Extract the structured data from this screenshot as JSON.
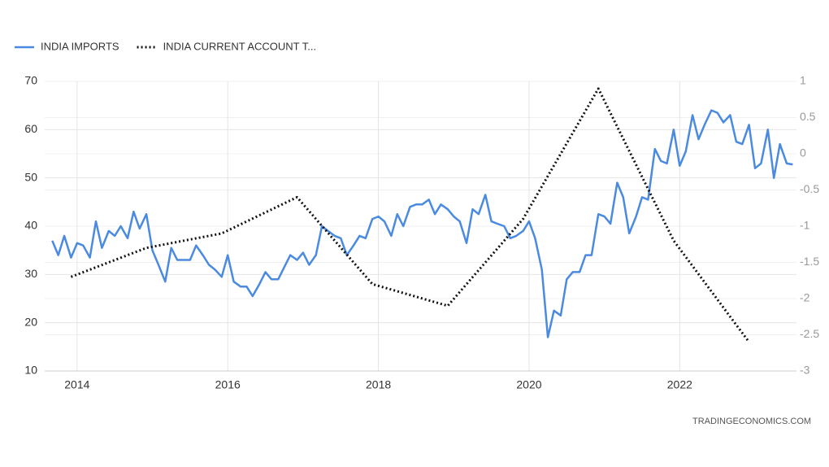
{
  "chart_data": {
    "type": "line",
    "series": [
      {
        "name": "INDIA IMPORTS",
        "color": "#4a8ae0",
        "axis": "y",
        "x": [
          2013.67,
          2013.75,
          2013.83,
          2013.92,
          2014.0,
          2014.08,
          2014.17,
          2014.25,
          2014.33,
          2014.42,
          2014.5,
          2014.58,
          2014.67,
          2014.75,
          2014.83,
          2014.92,
          2015.0,
          2015.08,
          2015.17,
          2015.25,
          2015.33,
          2015.42,
          2015.5,
          2015.58,
          2015.67,
          2015.75,
          2015.83,
          2015.92,
          2016.0,
          2016.08,
          2016.17,
          2016.25,
          2016.33,
          2016.42,
          2016.5,
          2016.58,
          2016.67,
          2016.75,
          2016.83,
          2016.92,
          2017.0,
          2017.08,
          2017.17,
          2017.25,
          2017.33,
          2017.42,
          2017.5,
          2017.58,
          2017.67,
          2017.75,
          2017.83,
          2017.92,
          2018.0,
          2018.08,
          2018.17,
          2018.25,
          2018.33,
          2018.42,
          2018.5,
          2018.58,
          2018.67,
          2018.75,
          2018.83,
          2018.92,
          2019.0,
          2019.08,
          2019.17,
          2019.25,
          2019.33,
          2019.42,
          2019.5,
          2019.58,
          2019.67,
          2019.75,
          2019.83,
          2019.92,
          2020.0,
          2020.08,
          2020.17,
          2020.25,
          2020.33,
          2020.42,
          2020.5,
          2020.58,
          2020.67,
          2020.75,
          2020.83,
          2020.92,
          2021.0,
          2021.08,
          2021.17,
          2021.25,
          2021.33,
          2021.42,
          2021.5,
          2021.58,
          2021.67,
          2021.75,
          2021.83,
          2021.92,
          2022.0,
          2022.08,
          2022.17,
          2022.25,
          2022.33,
          2022.42,
          2022.5,
          2022.58,
          2022.67,
          2022.75,
          2022.83,
          2022.92,
          2023.0,
          2023.08,
          2023.17,
          2023.25,
          2023.33,
          2023.42,
          2023.5
        ],
        "values": [
          37,
          34,
          38,
          33.5,
          36.5,
          36,
          33.5,
          41,
          35.5,
          39,
          38,
          40,
          37.5,
          43,
          39.5,
          42.5,
          35,
          32,
          28.5,
          35.5,
          33,
          33,
          33,
          36,
          34,
          32,
          31,
          29.5,
          34,
          28.5,
          27.5,
          27.5,
          25.5,
          28,
          30.5,
          29,
          29,
          31.5,
          34,
          33,
          34.5,
          32,
          34,
          40,
          39,
          38,
          37.5,
          34,
          36,
          38,
          37.5,
          41.5,
          42,
          41,
          38,
          42.5,
          40,
          44,
          44.5,
          44.5,
          45.5,
          42.5,
          44.5,
          43.5,
          42,
          41,
          36.5,
          43.5,
          42.5,
          46.5,
          41,
          40.5,
          40,
          37.5,
          38,
          39,
          41,
          37.5,
          31,
          17,
          22.5,
          21.5,
          29,
          30.5,
          30.5,
          34,
          34,
          42.5,
          42,
          40.5,
          49,
          46,
          38.5,
          42,
          46,
          45.5,
          56,
          53.5,
          53,
          60,
          52.5,
          55.5,
          63,
          58,
          61,
          64,
          63.5,
          61.5,
          63,
          57.5,
          57,
          61,
          52,
          53,
          60,
          50,
          57,
          53,
          52.8
        ]
      },
      {
        "name": "INDIA CURRENT ACCOUNT T...",
        "color": "#111111",
        "axis": "y2",
        "dashed": true,
        "x": [
          2013.92,
          2014.92,
          2015.92,
          2016.92,
          2017.92,
          2018.92,
          2019.92,
          2020.92,
          2021.92,
          2022.92
        ],
        "values": [
          -1.7,
          -1.3,
          -1.1,
          -0.6,
          -1.8,
          -2.1,
          -0.9,
          0.9,
          -1.2,
          -2.6
        ]
      }
    ],
    "xlim": [
      2013.57,
      2023.55
    ],
    "xticks": [
      2014,
      2016,
      2018,
      2020,
      2022
    ],
    "ylim": [
      10,
      70
    ],
    "yticks": [
      10,
      20,
      30,
      40,
      50,
      60,
      70
    ],
    "y2lim": [
      -3,
      1
    ],
    "y2ticks": [
      1,
      0.5,
      0,
      -0.5,
      -1,
      -1.5,
      -2,
      -2.5,
      -3
    ],
    "grid": true,
    "legend": "top-left",
    "source": "TRADINGECONOMICS.COM"
  }
}
